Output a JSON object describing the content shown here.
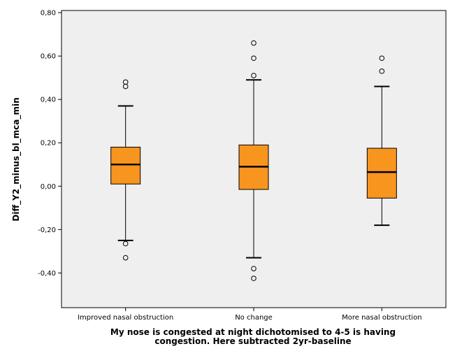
{
  "chart_data": {
    "type": "boxplot",
    "title": "",
    "ylabel": "Diff_Y2_minus_bl_mca_min",
    "xlabel_lines": [
      "My nose is congested at night dichotomised to 4-5 is having",
      "congestion. Here subtracted 2yr-baseline"
    ],
    "ylim": [
      -0.56,
      0.81
    ],
    "y_ticks": [
      {
        "value": 0.8,
        "label": "0,80"
      },
      {
        "value": 0.6,
        "label": "0,60"
      },
      {
        "value": 0.4,
        "label": "0,40"
      },
      {
        "value": 0.2,
        "label": "0,20"
      },
      {
        "value": 0.0,
        "label": "0,00"
      },
      {
        "value": -0.2,
        "label": "-0,20"
      },
      {
        "value": -0.4,
        "label": "-0,40"
      }
    ],
    "categories": [
      "Improved nasal obstruction",
      "No change",
      "More nasal obstruction"
    ],
    "boxes": [
      {
        "category": "Improved nasal obstruction",
        "whisker_low": -0.25,
        "q1": 0.01,
        "median": 0.1,
        "q3": 0.18,
        "whisker_high": 0.37,
        "outliers": [
          0.48,
          0.46,
          -0.265,
          -0.33
        ]
      },
      {
        "category": "No change",
        "whisker_low": -0.33,
        "q1": -0.015,
        "median": 0.09,
        "q3": 0.19,
        "whisker_high": 0.49,
        "outliers": [
          0.66,
          0.59,
          0.51,
          -0.38,
          -0.425
        ]
      },
      {
        "category": "More nasal obstruction",
        "whisker_low": -0.18,
        "q1": -0.055,
        "median": 0.065,
        "q3": 0.175,
        "whisker_high": 0.46,
        "outliers": [
          0.59,
          0.53
        ]
      }
    ],
    "grid": false,
    "colors": {
      "box_fill": "#f7951e",
      "plot_background": "#efefef",
      "stroke": "#000000"
    }
  }
}
